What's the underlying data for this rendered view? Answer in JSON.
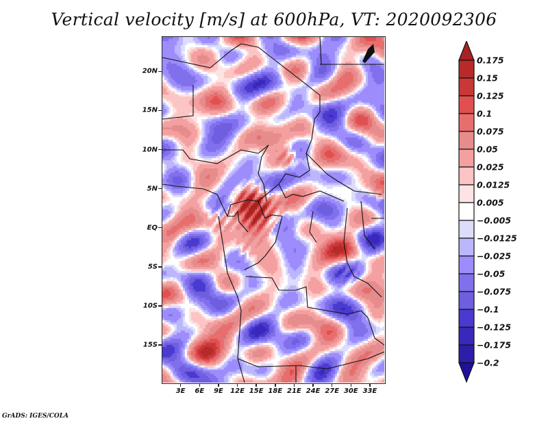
{
  "title": "Vertical velocity [m/s] at 600hPa, VT: 2020092306",
  "credit": "GrADS: IGES/COLA",
  "map": {
    "variable": "Vertical velocity",
    "units": "m/s",
    "level": "600hPa",
    "valid_time": "2020092306",
    "lon_range": [
      0,
      35.5
    ],
    "lat_range": [
      -20,
      24.5
    ],
    "y_ticks": [
      {
        "label": "20N",
        "lat": 20
      },
      {
        "label": "15N",
        "lat": 15
      },
      {
        "label": "10N",
        "lat": 10
      },
      {
        "label": "5N",
        "lat": 5
      },
      {
        "label": "EQ",
        "lat": 0
      },
      {
        "label": "5S",
        "lat": -5
      },
      {
        "label": "10S",
        "lat": -10
      },
      {
        "label": "15S",
        "lat": -15
      }
    ],
    "x_ticks": [
      {
        "label": "3E",
        "lon": 3
      },
      {
        "label": "6E",
        "lon": 6
      },
      {
        "label": "9E",
        "lon": 9
      },
      {
        "label": "12E",
        "lon": 12
      },
      {
        "label": "15E",
        "lon": 15
      },
      {
        "label": "18E",
        "lon": 18
      },
      {
        "label": "21E",
        "lon": 21
      },
      {
        "label": "24E",
        "lon": 24
      },
      {
        "label": "27E",
        "lon": 27
      },
      {
        "label": "30E",
        "lon": 30
      },
      {
        "label": "33E",
        "lon": 33
      }
    ]
  },
  "colorbar": {
    "levels": [
      {
        "label": "0.175",
        "value": 0.175
      },
      {
        "label": "0.15",
        "value": 0.15
      },
      {
        "label": "0.125",
        "value": 0.125
      },
      {
        "label": "0.1",
        "value": 0.1
      },
      {
        "label": "0.075",
        "value": 0.075
      },
      {
        "label": "0.05",
        "value": 0.05
      },
      {
        "label": "0.025",
        "value": 0.025
      },
      {
        "label": "0.0125",
        "value": 0.0125
      },
      {
        "label": "0.005",
        "value": 0.005
      },
      {
        "label": "−0.005",
        "value": -0.005
      },
      {
        "label": "−0.0125",
        "value": -0.0125
      },
      {
        "label": "−0.025",
        "value": -0.025
      },
      {
        "label": "−0.05",
        "value": -0.05
      },
      {
        "label": "−0.075",
        "value": -0.075
      },
      {
        "label": "−0.1",
        "value": -0.1
      },
      {
        "label": "−0.125",
        "value": -0.125
      },
      {
        "label": "−0.175",
        "value": -0.175
      },
      {
        "label": "−0.2",
        "value": -0.2
      }
    ],
    "colors_top_to_bottom": [
      "#a82222",
      "#b82a2a",
      "#c93838",
      "#e05050",
      "#e86e6e",
      "#e68c8c",
      "#f4a0a0",
      "#fcc4c4",
      "#fde3e3",
      "#ffffff",
      "#dcdcfc",
      "#bcb6fc",
      "#9c8cfc",
      "#8070ec",
      "#6e5ee0",
      "#4a3ad0",
      "#3a28bc",
      "#2c1ea8",
      "#20109c"
    ]
  }
}
